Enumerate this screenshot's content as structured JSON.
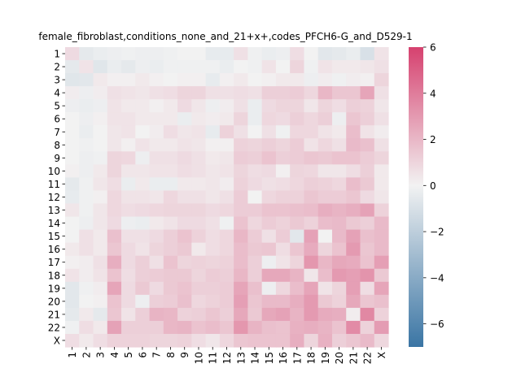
{
  "chart_data": {
    "type": "heatmap",
    "title": "female_fibroblast,conditions_none_and_21+x+,codes_PFCH6-G_and_D529-1",
    "row_labels": [
      "1",
      "2",
      "3",
      "4",
      "5",
      "6",
      "7",
      "8",
      "9",
      "10",
      "11",
      "12",
      "13",
      "14",
      "15",
      "16",
      "17",
      "18",
      "19",
      "20",
      "21",
      "22",
      "X"
    ],
    "col_labels": [
      "1",
      "2",
      "3",
      "4",
      "5",
      "6",
      "7",
      "8",
      "9",
      "10",
      "11",
      "12",
      "13",
      "14",
      "15",
      "16",
      "17",
      "18",
      "19",
      "20",
      "21",
      "22",
      "X"
    ],
    "colorbar": {
      "vmin": -7,
      "vmax": 6,
      "ticks": [
        6,
        4,
        2,
        0,
        -2,
        -4,
        -6
      ],
      "tick_labels": [
        "6",
        "4",
        "2",
        "0",
        "−2",
        "−4",
        "−6"
      ]
    },
    "colormap": {
      "negative": "#3a75a4",
      "zero": "#f2f2f2",
      "positive": "#d6416f"
    },
    "values": [
      [
        0.8,
        -0.5,
        -0.3,
        -0.2,
        -0.1,
        -0.2,
        -0.2,
        -0.1,
        0.0,
        0.0,
        -0.4,
        -0.4,
        0.6,
        -0.1,
        -0.3,
        -0.2,
        0.7,
        0.0,
        -0.6,
        -0.5,
        -0.3,
        -1.0,
        0.5
      ],
      [
        -0.5,
        0.5,
        -0.7,
        -0.3,
        -0.5,
        -0.2,
        -0.3,
        -0.1,
        -0.1,
        -0.1,
        -0.1,
        -0.3,
        0.0,
        -0.1,
        0.5,
        0.0,
        1.0,
        -0.1,
        0.5,
        0.3,
        0.3,
        0.4,
        0.6
      ],
      [
        -0.7,
        -0.6,
        0.3,
        0.1,
        0.1,
        0.3,
        0.1,
        0.0,
        0.1,
        0.1,
        -0.4,
        0.1,
        0.3,
        0.0,
        0.1,
        0.3,
        0.3,
        -0.2,
        0.2,
        -0.1,
        0.2,
        0.1,
        1.0
      ],
      [
        0.2,
        -0.2,
        0.2,
        0.6,
        0.5,
        0.4,
        0.6,
        0.7,
        1.0,
        1.0,
        0.6,
        0.6,
        0.7,
        0.6,
        1.2,
        1.2,
        1.3,
        0.9,
        2.0,
        1.5,
        1.5,
        2.6,
        0.6
      ],
      [
        -0.2,
        -0.3,
        -0.2,
        0.5,
        0.3,
        0.3,
        0.1,
        0.3,
        0.8,
        0.4,
        -0.2,
        0.2,
        0.6,
        -0.3,
        0.8,
        1.0,
        1.0,
        0.4,
        1.0,
        0.7,
        1.2,
        1.1,
        0.4
      ],
      [
        0.0,
        -0.2,
        0.1,
        0.5,
        0.5,
        0.3,
        0.3,
        0.3,
        -0.3,
        0.3,
        0.2,
        0.3,
        1.0,
        -0.3,
        0.9,
        0.8,
        1.2,
        0.9,
        1.2,
        -0.2,
        1.5,
        1.2,
        0.6
      ],
      [
        0.0,
        -0.3,
        0.0,
        0.4,
        0.5,
        0.0,
        0.2,
        0.7,
        0.4,
        0.5,
        -0.4,
        1.1,
        0.6,
        0.0,
        0.6,
        -0.1,
        0.9,
        0.9,
        0.5,
        0.3,
        1.8,
        0.5,
        0.2
      ],
      [
        0.0,
        -0.1,
        0.0,
        0.4,
        0.1,
        0.5,
        0.3,
        0.3,
        0.5,
        0.4,
        0.1,
        0.1,
        1.1,
        1.0,
        1.2,
        1.0,
        1.3,
        0.5,
        0.9,
        0.6,
        1.9,
        1.7,
        0.6
      ],
      [
        0.0,
        -0.2,
        -0.1,
        1.0,
        0.9,
        -0.2,
        0.6,
        0.6,
        0.8,
        0.6,
        0.3,
        0.4,
        1.3,
        1.2,
        1.6,
        1.2,
        1.3,
        1.5,
        1.4,
        1.6,
        1.6,
        1.3,
        1.0
      ],
      [
        0.1,
        -0.2,
        0.3,
        1.0,
        0.4,
        0.4,
        0.5,
        0.5,
        0.7,
        0.6,
        0.4,
        0.5,
        1.0,
        0.7,
        0.8,
        0.1,
        1.0,
        0.9,
        0.4,
        0.4,
        0.7,
        1.2,
        0.3
      ],
      [
        -0.5,
        -0.1,
        0.4,
        0.7,
        -0.3,
        0.3,
        -0.3,
        -0.3,
        0.3,
        0.3,
        0.4,
        0.2,
        1.1,
        0.8,
        0.6,
        0.7,
        0.9,
        1.2,
        1.1,
        0.9,
        1.8,
        1.4,
        0.3
      ],
      [
        -0.4,
        -0.1,
        0.1,
        0.9,
        0.5,
        0.5,
        0.4,
        0.9,
        0.6,
        0.6,
        0.4,
        0.6,
        1.3,
        0.0,
        0.9,
        1.1,
        1.1,
        1.5,
        1.3,
        1.3,
        1.5,
        0.8,
        0.4
      ],
      [
        0.4,
        -0.1,
        0.4,
        0.9,
        0.7,
        0.8,
        0.9,
        1.0,
        1.0,
        1.0,
        0.8,
        0.9,
        1.3,
        1.3,
        1.6,
        1.6,
        1.7,
        1.8,
        2.3,
        2.1,
        2.3,
        2.7,
        1.1
      ],
      [
        0.0,
        -0.2,
        0.4,
        0.8,
        -0.2,
        -0.3,
        0.3,
        0.5,
        0.8,
        0.8,
        0.6,
        -0.1,
        1.6,
        0.9,
        1.3,
        1.1,
        1.4,
        1.1,
        1.8,
        1.9,
        1.4,
        1.2,
        1.9
      ],
      [
        0.0,
        0.6,
        0.3,
        1.7,
        0.6,
        0.6,
        0.8,
        1.2,
        1.6,
        1.1,
        0.7,
        0.9,
        2.0,
        1.3,
        0.6,
        1.3,
        -0.6,
        2.7,
        0.0,
        1.9,
        2.7,
        1.7,
        1.9
      ],
      [
        0.3,
        0.6,
        0.3,
        1.5,
        0.8,
        0.5,
        1.0,
        1.2,
        1.4,
        0.3,
        0.7,
        0.9,
        1.8,
        1.4,
        1.5,
        0.7,
        1.5,
        2.4,
        1.0,
        1.6,
        3.0,
        1.5,
        1.9
      ],
      [
        0.1,
        0.2,
        0.6,
        2.3,
        0.8,
        1.2,
        0.6,
        1.6,
        1.0,
        1.1,
        1.0,
        1.1,
        1.8,
        1.2,
        -0.2,
        0.5,
        1.0,
        3.1,
        2.0,
        2.5,
        2.4,
        1.6,
        2.8
      ],
      [
        0.5,
        0.2,
        0.5,
        1.6,
        0.7,
        1.2,
        1.3,
        1.4,
        1.4,
        1.0,
        1.3,
        1.2,
        2.0,
        1.2,
        2.5,
        2.5,
        2.1,
        0.4,
        1.8,
        3.0,
        2.8,
        3.2,
        1.4
      ],
      [
        -0.6,
        -0.1,
        0.2,
        2.6,
        0.8,
        1.4,
        0.8,
        1.4,
        1.6,
        1.2,
        1.2,
        1.3,
        2.6,
        1.7,
        -0.2,
        0.9,
        1.8,
        2.6,
        0.5,
        1.0,
        2.8,
        0.7,
        2.6
      ],
      [
        -0.6,
        0.0,
        0.1,
        1.6,
        0.8,
        -0.2,
        1.2,
        1.3,
        1.7,
        0.9,
        1.1,
        1.3,
        2.8,
        1.5,
        1.9,
        1.9,
        2.3,
        3.0,
        1.4,
        1.1,
        2.5,
        1.5,
        1.7
      ],
      [
        -0.5,
        0.3,
        -0.5,
        1.5,
        0.5,
        1.2,
        2.1,
        2.0,
        1.1,
        1.2,
        1.5,
        1.2,
        2.5,
        1.4,
        2.5,
        2.7,
        2.1,
        3.0,
        2.4,
        2.3,
        0.2,
        3.6,
        1.1
      ],
      [
        -0.1,
        0.7,
        0.3,
        2.7,
        1.2,
        1.2,
        1.2,
        2.0,
        2.1,
        1.6,
        1.8,
        1.5,
        3.1,
        2.1,
        1.7,
        1.6,
        2.2,
        2.3,
        2.1,
        1.6,
        3.5,
        1.1,
        2.9
      ],
      [
        0.7,
        0.3,
        0.7,
        1.1,
        1.1,
        1.1,
        1.0,
        1.0,
        1.1,
        0.7,
        0.4,
        0.9,
        1.5,
        1.6,
        1.6,
        1.6,
        2.3,
        1.0,
        2.2,
        1.2,
        1.5,
        1.9,
        0.9
      ]
    ]
  }
}
